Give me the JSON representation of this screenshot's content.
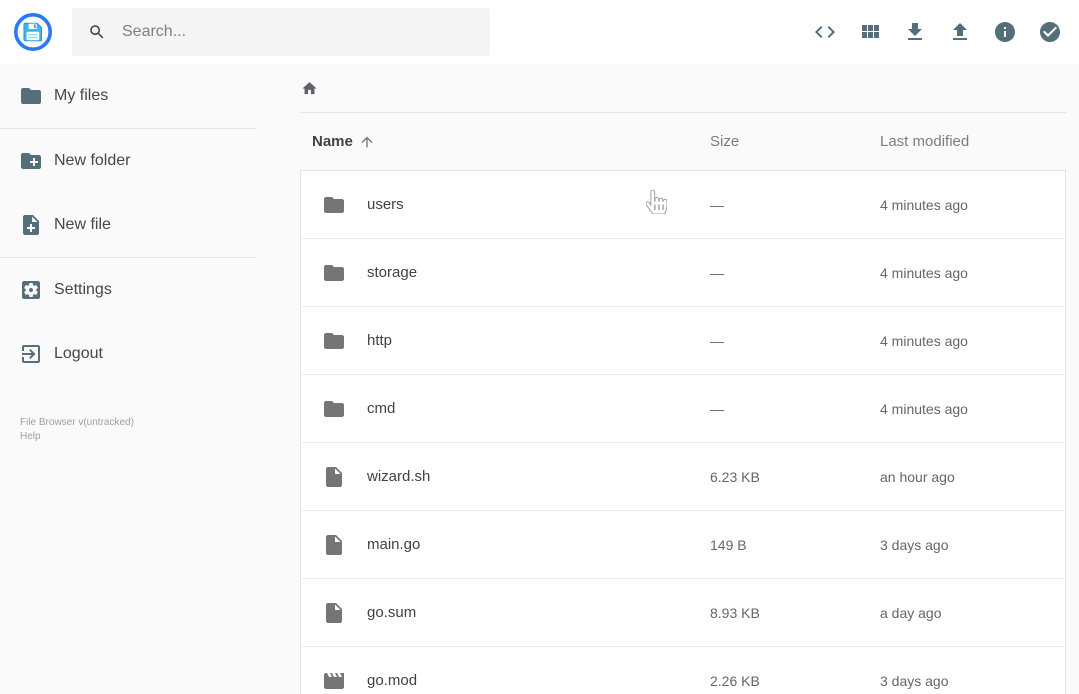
{
  "app": {
    "name": "File Browser"
  },
  "colors": {
    "accent_blue": "#2979f2",
    "logo_floppy_blue": "#41b3ef",
    "icon_slate": "#546e7a",
    "icon_gray": "#757575",
    "background": "#fafafa"
  },
  "header": {
    "logo_icon": "floppy-disk-logo",
    "search": {
      "placeholder": "Search...",
      "icon": "search"
    },
    "actions": [
      {
        "name": "shell",
        "icon": "code"
      },
      {
        "name": "switch-view",
        "icon": "grid"
      },
      {
        "name": "download",
        "icon": "download"
      },
      {
        "name": "upload",
        "icon": "upload"
      },
      {
        "name": "info",
        "icon": "info"
      },
      {
        "name": "select-multiple",
        "icon": "check-circle"
      }
    ]
  },
  "sidebar": {
    "groups": [
      {
        "items": [
          {
            "label": "My files",
            "icon": "folder"
          }
        ]
      },
      {
        "items": [
          {
            "label": "New folder",
            "icon": "create-new-folder"
          },
          {
            "label": "New file",
            "icon": "note-add"
          }
        ]
      },
      {
        "items": [
          {
            "label": "Settings",
            "icon": "settings"
          },
          {
            "label": "Logout",
            "icon": "logout"
          }
        ]
      }
    ],
    "footer": {
      "version": "File Browser v(untracked)",
      "help": "Help"
    }
  },
  "main": {
    "breadcrumb": {
      "home_icon": "home"
    },
    "table": {
      "headers": {
        "name": "Name",
        "size": "Size",
        "modified": "Last modified"
      },
      "sort": {
        "column": "Name",
        "direction": "ascending",
        "icon": "arrow-up"
      },
      "rows": [
        {
          "name": "users",
          "type": "folder",
          "size": "—",
          "modified": "4 minutes ago"
        },
        {
          "name": "storage",
          "type": "folder",
          "size": "—",
          "modified": "4 minutes ago"
        },
        {
          "name": "http",
          "type": "folder",
          "size": "—",
          "modified": "4 minutes ago"
        },
        {
          "name": "cmd",
          "type": "folder",
          "size": "—",
          "modified": "4 minutes ago"
        },
        {
          "name": "wizard.sh",
          "type": "file",
          "size": "6.23 KB",
          "modified": "an hour ago"
        },
        {
          "name": "main.go",
          "type": "file",
          "size": "149 B",
          "modified": "3 days ago"
        },
        {
          "name": "go.sum",
          "type": "file",
          "size": "8.93 KB",
          "modified": "a day ago"
        },
        {
          "name": "go.mod",
          "type": "movie",
          "size": "2.26 KB",
          "modified": "3 days ago"
        }
      ]
    }
  },
  "overlay": {
    "cursor": "hand-pointer-cursor"
  }
}
